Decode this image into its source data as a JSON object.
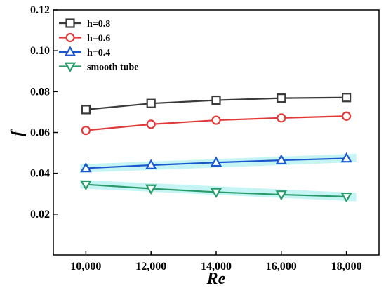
{
  "chart_data": {
    "type": "line",
    "xlabel": "Re",
    "ylabel": "f",
    "xlim": [
      9000,
      19000
    ],
    "ylim": [
      0.0,
      0.12
    ],
    "x": [
      10000,
      12000,
      14000,
      16000,
      18000
    ],
    "x_tick_values": [
      10000,
      12000,
      14000,
      16000,
      18000
    ],
    "x_tick_labels": [
      "10,000",
      "12,000",
      "14,000",
      "16,000",
      "18,000"
    ],
    "y_tick_values": [
      0.02,
      0.04,
      0.06,
      0.08,
      0.1,
      0.12
    ],
    "y_tick_labels": [
      "0.02",
      "0.04",
      "0.06",
      "0.08",
      "0.10",
      "0.12"
    ],
    "grid": false,
    "legend_position": "top-left",
    "series": [
      {
        "name": "h=0.8",
        "marker": "square",
        "color": "#3a3a3a",
        "band": false,
        "values": [
          0.0712,
          0.0742,
          0.0758,
          0.0768,
          0.0771
        ]
      },
      {
        "name": "h=0.6",
        "marker": "circle",
        "color": "#e03a3a",
        "band": false,
        "values": [
          0.061,
          0.064,
          0.066,
          0.0671,
          0.068
        ]
      },
      {
        "name": "h=0.4",
        "marker": "triangle-up",
        "color": "#1a56cc",
        "band": true,
        "band_color": "#bff3f3",
        "values": [
          0.0425,
          0.044,
          0.0453,
          0.0464,
          0.0473
        ]
      },
      {
        "name": "smooth tube",
        "marker": "triangle-down",
        "color": "#2a9a6a",
        "band": true,
        "band_color": "#bff3f3",
        "values": [
          0.0345,
          0.0325,
          0.0308,
          0.0296,
          0.0286
        ]
      }
    ]
  }
}
